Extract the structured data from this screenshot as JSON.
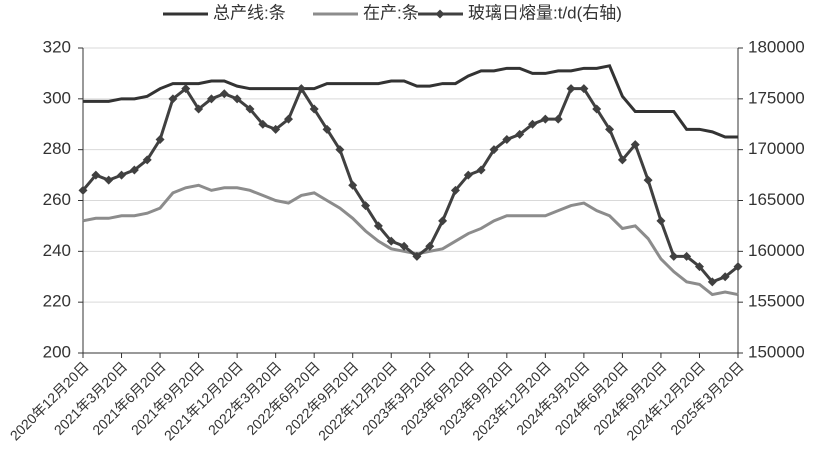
{
  "chart_data": {
    "type": "line",
    "categories": [
      "2020年12月20日",
      null,
      null,
      "2021年3月20日",
      null,
      null,
      "2021年6月20日",
      null,
      null,
      "2021年9月20日",
      null,
      null,
      "2021年12月20日",
      null,
      null,
      "2022年3月20日",
      null,
      null,
      "2022年6月20日",
      null,
      null,
      "2022年9月20日",
      null,
      null,
      "2022年12月20日",
      null,
      null,
      "2023年3月20日",
      null,
      null,
      "2023年6月20日",
      null,
      null,
      "2023年9月20日",
      null,
      null,
      "2023年12月20日",
      null,
      null,
      "2024年3月20日",
      null,
      null,
      "2024年6月20日",
      null,
      null,
      "2024年9月20日",
      null,
      null,
      "2024年12月20日",
      null,
      null,
      "2025年3月20日"
    ],
    "series": [
      {
        "name": "总产线:条",
        "color": "#333333",
        "axis": "y",
        "marker": false,
        "values": [
          299,
          299,
          299,
          300,
          300,
          301,
          304,
          306,
          306,
          306,
          307,
          307,
          305,
          304,
          304,
          304,
          304,
          304,
          304,
          306,
          306,
          306,
          306,
          306,
          307,
          307,
          305,
          305,
          306,
          306,
          309,
          311,
          311,
          312,
          312,
          310,
          310,
          311,
          311,
          312,
          312,
          313,
          301,
          295,
          295,
          295,
          295,
          288,
          288,
          287,
          285,
          285
        ]
      },
      {
        "name": "在产:条",
        "color": "#8c8c8c",
        "axis": "y",
        "marker": false,
        "values": [
          252,
          253,
          253,
          254,
          254,
          255,
          257,
          263,
          265,
          266,
          264,
          265,
          265,
          264,
          262,
          260,
          259,
          262,
          263,
          260,
          257,
          253,
          248,
          244,
          241,
          240,
          239,
          240,
          241,
          244,
          247,
          249,
          252,
          254,
          254,
          254,
          254,
          256,
          258,
          259,
          256,
          254,
          249,
          250,
          245,
          237,
          232,
          228,
          227,
          223,
          224,
          223
        ]
      },
      {
        "name": "玻璃日熔量:t/d(右轴)",
        "color": "#404040",
        "axis": "y2",
        "marker": true,
        "values": [
          166000,
          167500,
          167000,
          167500,
          168000,
          169000,
          171000,
          175000,
          176000,
          174000,
          175000,
          175500,
          175000,
          174000,
          172500,
          172000,
          173000,
          176000,
          174000,
          172000,
          170000,
          166500,
          164500,
          162500,
          161000,
          160500,
          159500,
          160500,
          163000,
          166000,
          167500,
          168000,
          170000,
          171000,
          171500,
          172500,
          173000,
          173000,
          176000,
          176000,
          174000,
          172000,
          169000,
          170500,
          167000,
          163000,
          159500,
          159500,
          158500,
          157000,
          157500,
          158500
        ]
      }
    ],
    "ylim": [
      200,
      320
    ],
    "yticks": [
      200,
      220,
      240,
      260,
      280,
      300,
      320
    ],
    "y2lim": [
      150000,
      180000
    ],
    "y2ticks": [
      150000,
      155000,
      160000,
      165000,
      170000,
      175000,
      180000
    ],
    "grid": true,
    "legend": "top"
  }
}
